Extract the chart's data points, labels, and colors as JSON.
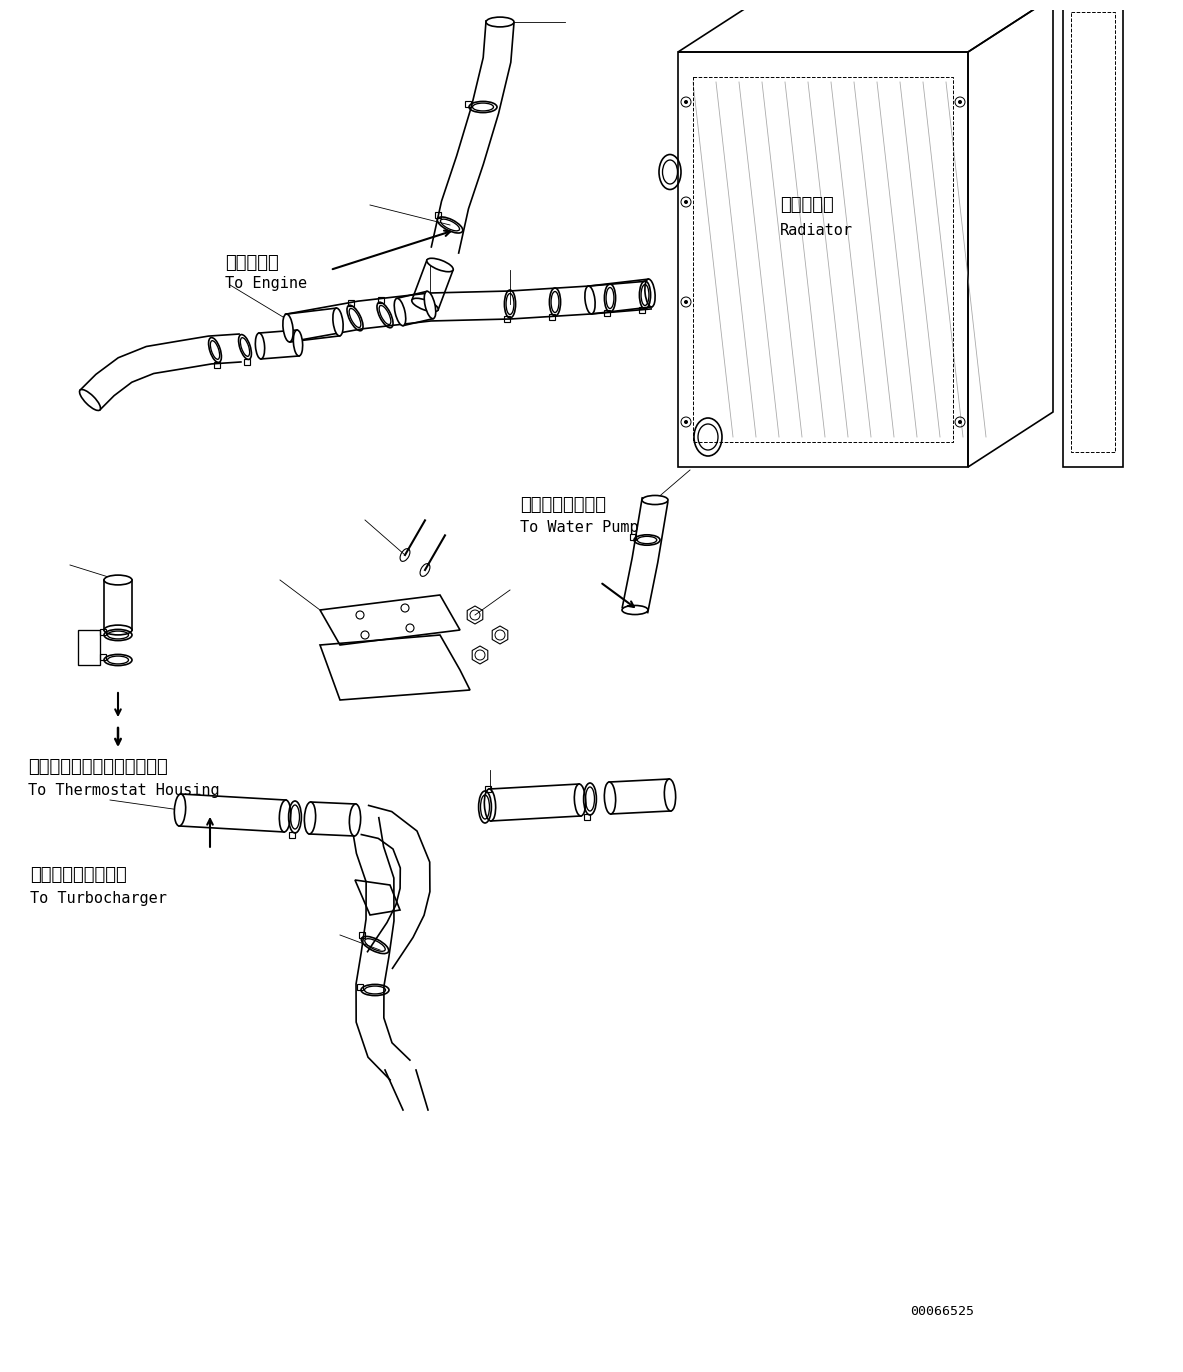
{
  "bg_color": "#ffffff",
  "lc": "#000000",
  "fig_width": 11.63,
  "fig_height": 13.52,
  "labels": {
    "engine_jp": "エンジンへ",
    "engine_en": "To Engine",
    "radiator_jp": "ラジエータ",
    "radiator_en": "Radiator",
    "water_pump_jp": "ウォータポンプへ",
    "water_pump_en": "To Water Pump",
    "thermostat_jp": "サーモスタットハウジングへ",
    "thermostat_en": "To Thermostat Housing",
    "turbo_jp": "ターボチャージャへ",
    "turbo_en": "To Turbocharger",
    "part_num": "00066525"
  }
}
